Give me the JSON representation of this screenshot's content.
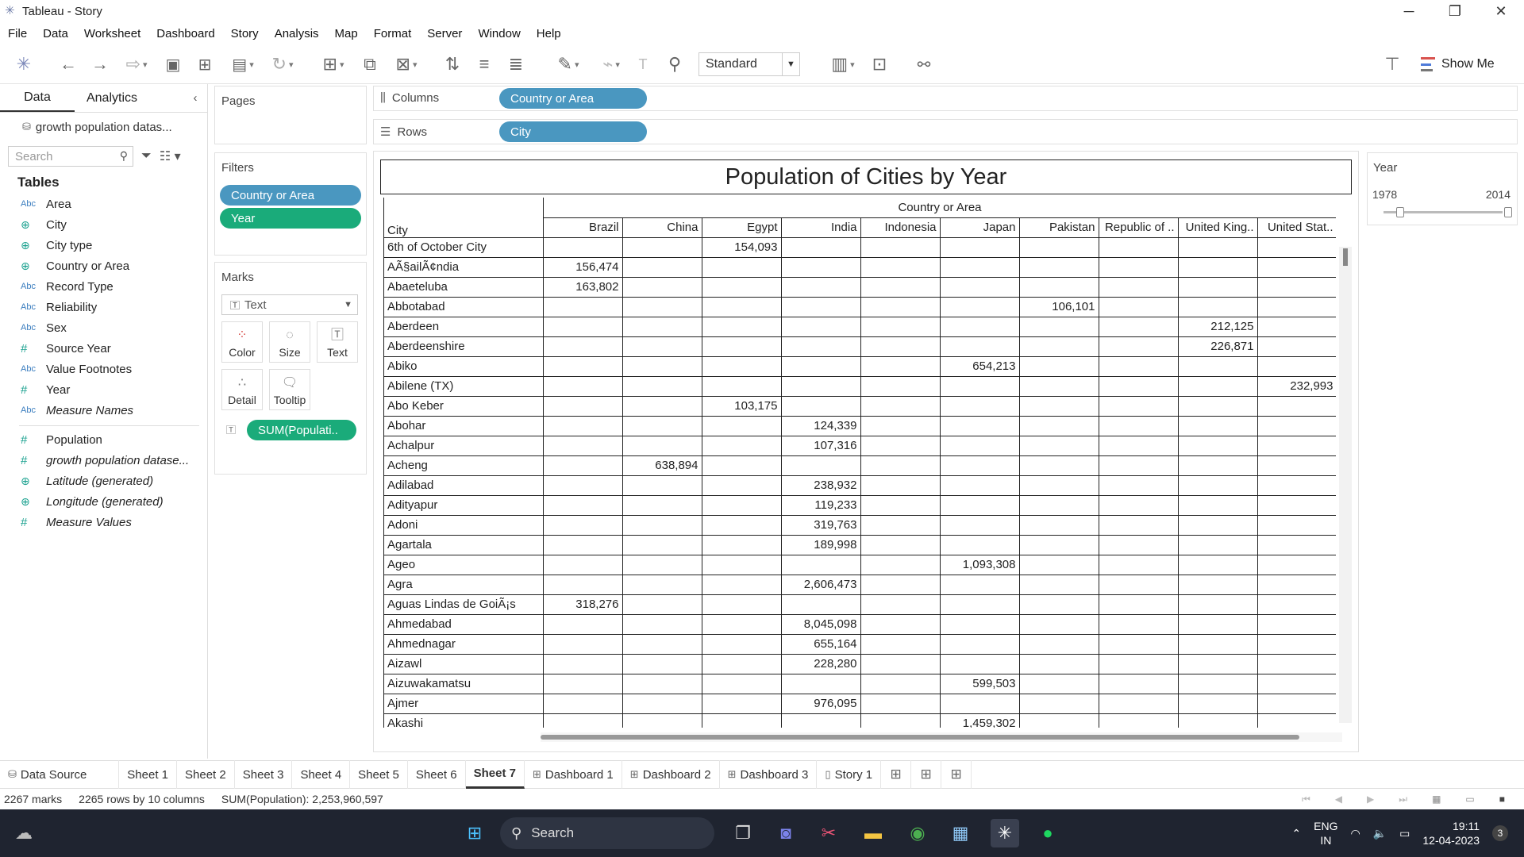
{
  "window": {
    "title": "Tableau - Story"
  },
  "menu": [
    "File",
    "Data",
    "Worksheet",
    "Dashboard",
    "Story",
    "Analysis",
    "Map",
    "Format",
    "Server",
    "Window",
    "Help"
  ],
  "toolbar": {
    "fit_select": "Standard",
    "show_me": "Show Me"
  },
  "data_pane": {
    "tabs": [
      "Data",
      "Analytics"
    ],
    "datasource": "growth population datas...",
    "search_placeholder": "Search",
    "tables_heading": "Tables",
    "dimensions": [
      {
        "type": "Abc",
        "name": "Area"
      },
      {
        "type": "geo",
        "name": "City"
      },
      {
        "type": "geo",
        "name": "City type"
      },
      {
        "type": "geo",
        "name": "Country or Area"
      },
      {
        "type": "Abc",
        "name": "Record Type"
      },
      {
        "type": "Abc",
        "name": "Reliability"
      },
      {
        "type": "Abc",
        "name": "Sex"
      },
      {
        "type": "#",
        "name": "Source Year"
      },
      {
        "type": "Abc",
        "name": "Value Footnotes"
      },
      {
        "type": "#",
        "name": "Year"
      },
      {
        "type": "Abc",
        "name": "Measure Names",
        "italic": true
      }
    ],
    "measures": [
      {
        "type": "#",
        "name": "Population"
      },
      {
        "type": "#",
        "name": "growth population datase...",
        "italic": true
      },
      {
        "type": "geo",
        "name": "Latitude (generated)",
        "italic": true
      },
      {
        "type": "geo",
        "name": "Longitude (generated)",
        "italic": true
      },
      {
        "type": "#",
        "name": "Measure Values",
        "italic": true
      }
    ]
  },
  "pages": {
    "title": "Pages"
  },
  "filters": {
    "title": "Filters",
    "items": [
      "Country or Area",
      "Year"
    ]
  },
  "marks": {
    "title": "Marks",
    "type": "Text",
    "buttons": [
      "Color",
      "Size",
      "Text",
      "Detail",
      "Tooltip"
    ],
    "pill": "SUM(Populati.."
  },
  "shelves": {
    "columns_label": "Columns",
    "columns_pill": "Country or Area",
    "rows_label": "Rows",
    "rows_pill": "City"
  },
  "view": {
    "title": "Population of Cities by Year",
    "group_caption": "Country or Area",
    "row_header": "City",
    "countries": [
      "Brazil",
      "China",
      "Egypt",
      "India",
      "Indonesia",
      "Japan",
      "Pakistan",
      "Republic of ..",
      "United King..",
      "United Stat.."
    ],
    "rows": [
      {
        "city": "6th of October City",
        "values": [
          "",
          "",
          "154,093",
          "",
          "",
          "",
          "",
          "",
          "",
          ""
        ]
      },
      {
        "city": "AÃ§ailÃ¢ndia",
        "values": [
          "156,474",
          "",
          "",
          "",
          "",
          "",
          "",
          "",
          "",
          ""
        ]
      },
      {
        "city": "Abaeteluba",
        "values": [
          "163,802",
          "",
          "",
          "",
          "",
          "",
          "",
          "",
          "",
          ""
        ]
      },
      {
        "city": "Abbotabad",
        "values": [
          "",
          "",
          "",
          "",
          "",
          "",
          "106,101",
          "",
          "",
          ""
        ]
      },
      {
        "city": "Aberdeen",
        "values": [
          "",
          "",
          "",
          "",
          "",
          "",
          "",
          "",
          "212,125",
          ""
        ]
      },
      {
        "city": "Aberdeenshire",
        "values": [
          "",
          "",
          "",
          "",
          "",
          "",
          "",
          "",
          "226,871",
          ""
        ]
      },
      {
        "city": "Abiko",
        "values": [
          "",
          "",
          "",
          "",
          "",
          "654,213",
          "",
          "",
          "",
          ""
        ]
      },
      {
        "city": "Abilene (TX)",
        "values": [
          "",
          "",
          "",
          "",
          "",
          "",
          "",
          "",
          "",
          "232,993"
        ]
      },
      {
        "city": "Abo Keber",
        "values": [
          "",
          "",
          "103,175",
          "",
          "",
          "",
          "",
          "",
          "",
          ""
        ]
      },
      {
        "city": "Abohar",
        "values": [
          "",
          "",
          "",
          "124,339",
          "",
          "",
          "",
          "",
          "",
          ""
        ]
      },
      {
        "city": "Achalpur",
        "values": [
          "",
          "",
          "",
          "107,316",
          "",
          "",
          "",
          "",
          "",
          ""
        ]
      },
      {
        "city": "Acheng",
        "values": [
          "",
          "638,894",
          "",
          "",
          "",
          "",
          "",
          "",
          "",
          ""
        ]
      },
      {
        "city": "Adilabad",
        "values": [
          "",
          "",
          "",
          "238,932",
          "",
          "",
          "",
          "",
          "",
          ""
        ]
      },
      {
        "city": "Adityapur",
        "values": [
          "",
          "",
          "",
          "119,233",
          "",
          "",
          "",
          "",
          "",
          ""
        ]
      },
      {
        "city": "Adoni",
        "values": [
          "",
          "",
          "",
          "319,763",
          "",
          "",
          "",
          "",
          "",
          ""
        ]
      },
      {
        "city": "Agartala",
        "values": [
          "",
          "",
          "",
          "189,998",
          "",
          "",
          "",
          "",
          "",
          ""
        ]
      },
      {
        "city": "Ageo",
        "values": [
          "",
          "",
          "",
          "",
          "",
          "1,093,308",
          "",
          "",
          "",
          ""
        ]
      },
      {
        "city": "Agra",
        "values": [
          "",
          "",
          "",
          "2,606,473",
          "",
          "",
          "",
          "",
          "",
          ""
        ]
      },
      {
        "city": "Aguas Lindas de GoiÃ¡s",
        "values": [
          "318,276",
          "",
          "",
          "",
          "",
          "",
          "",
          "",
          "",
          ""
        ]
      },
      {
        "city": "Ahmedabad",
        "values": [
          "",
          "",
          "",
          "8,045,098",
          "",
          "",
          "",
          "",
          "",
          ""
        ]
      },
      {
        "city": "Ahmednagar",
        "values": [
          "",
          "",
          "",
          "655,164",
          "",
          "",
          "",
          "",
          "",
          ""
        ]
      },
      {
        "city": "Aizawl",
        "values": [
          "",
          "",
          "",
          "228,280",
          "",
          "",
          "",
          "",
          "",
          ""
        ]
      },
      {
        "city": "Aizuwakamatsu",
        "values": [
          "",
          "",
          "",
          "",
          "",
          "599,503",
          "",
          "",
          "",
          ""
        ]
      },
      {
        "city": "Ajmer",
        "values": [
          "",
          "",
          "",
          "976,095",
          "",
          "",
          "",
          "",
          "",
          ""
        ]
      },
      {
        "city": "Akashi",
        "values": [
          "",
          "",
          "",
          "",
          "",
          "1,459,302",
          "",
          "",
          "",
          ""
        ]
      }
    ]
  },
  "year_filter": {
    "title": "Year",
    "min": "1978",
    "max": "2014"
  },
  "sheet_tabs": [
    {
      "label": "Data Source",
      "icon": "database-icon"
    },
    {
      "label": "Sheet 1"
    },
    {
      "label": "Sheet 2"
    },
    {
      "label": "Sheet 3"
    },
    {
      "label": "Sheet 4"
    },
    {
      "label": "Sheet 5"
    },
    {
      "label": "Sheet 6"
    },
    {
      "label": "Sheet 7",
      "active": true
    },
    {
      "label": "Dashboard 1",
      "icon": "dashboard-icon"
    },
    {
      "label": "Dashboard 2",
      "icon": "dashboard-icon"
    },
    {
      "label": "Dashboard 3",
      "icon": "dashboard-icon"
    },
    {
      "label": "Story 1",
      "icon": "story-icon"
    }
  ],
  "status": {
    "marks": "2267 marks",
    "rows": "2265 rows by 10 columns",
    "sum": "SUM(Population): 2,253,960,597"
  },
  "taskbar": {
    "search": "Search",
    "lang1": "ENG",
    "lang2": "IN",
    "time": "19:11",
    "date": "12-04-2023",
    "badge": "3"
  }
}
